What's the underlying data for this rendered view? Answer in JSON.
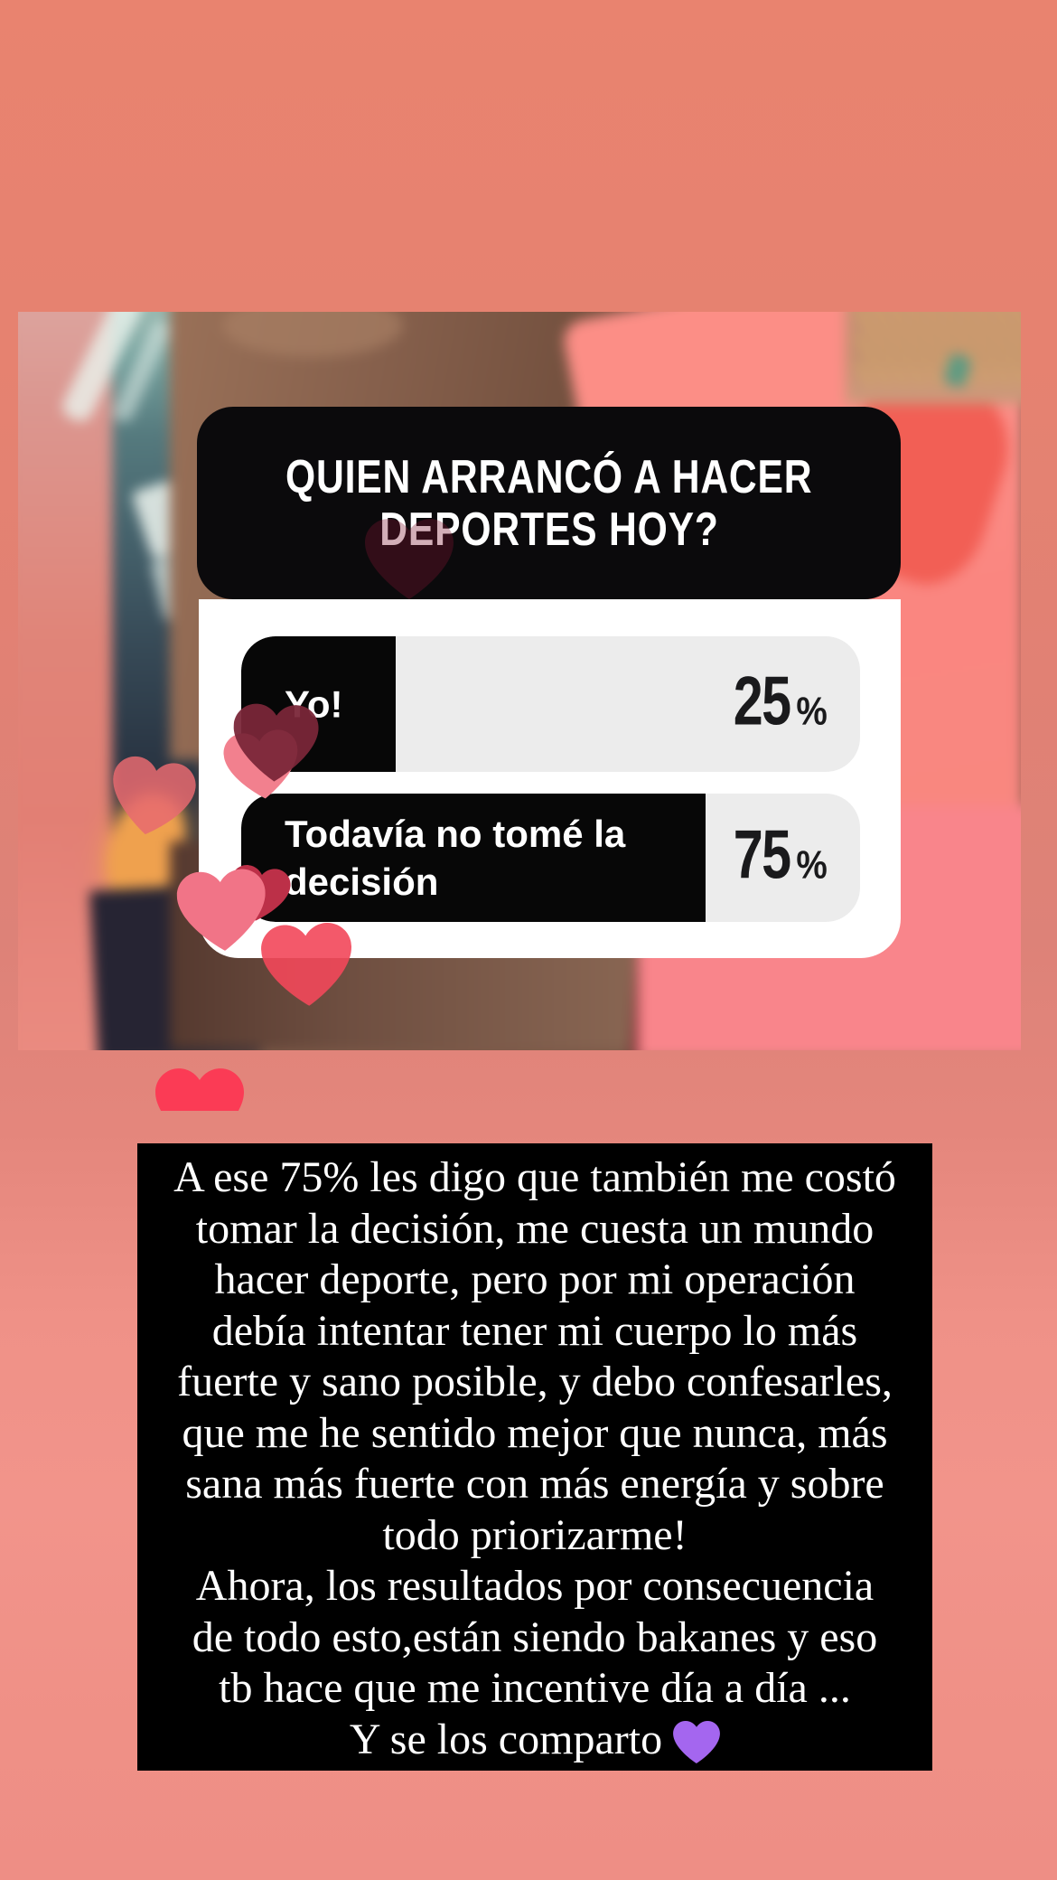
{
  "app": {
    "screen_title": "instagram-story-poll-result"
  },
  "background": {
    "top_color": "#E8826F",
    "bottom_color": "#EE8E85"
  },
  "poll": {
    "question_line1": "QUIEN ARRANCÓ A HACER",
    "question_line2": "DEPORTES HOY?",
    "card_color": "#0B0A0C",
    "results_card_color": "#FFFFFF",
    "bar_track_color": "#ECECEC",
    "bar_fill_color": "#070707",
    "options": [
      {
        "label_line1": "Yo!",
        "label_line2": "",
        "percent": "25",
        "percent_sign": "%",
        "fill_percent": 25
      },
      {
        "label_line1": "Todavía no tomé la",
        "label_line2": "decisión",
        "percent": "75",
        "percent_sign": "%",
        "fill_percent": 75
      }
    ]
  },
  "caption": {
    "background": "#000000",
    "text_color": "#FFFFFF",
    "lines": [
      "A ese 75% les digo que también me costó",
      "tomar la decisión, me cuesta un mundo",
      "hacer deporte, pero por mi operación",
      "debía intentar tener mi cuerpo lo más",
      "fuerte y sano posible, y debo confesarles,",
      "que me he sentido mejor que nunca, más",
      "sana más fuerte con más energía y sobre",
      "todo priorizarme!",
      "Ahora, los resultados por consecuencia",
      "de todo esto,están siendo bakanes y eso",
      "tb hace que me incentive día a día ...",
      "Y se los comparto"
    ]
  },
  "stickers": {
    "hearts": [
      {
        "name": "question-card-heart",
        "color": "#7D1530"
      },
      {
        "name": "pink-heart-under-yo",
        "color": "#F2808E"
      },
      {
        "name": "dark-wine-heart",
        "color": "#7A2638"
      },
      {
        "name": "photo-left-heart",
        "color": "#E86A70"
      },
      {
        "name": "crimson-heart",
        "color": "#BC3048"
      },
      {
        "name": "pink-heart-mid",
        "color": "#F17487"
      },
      {
        "name": "salmon-heart",
        "color": "#F2485A"
      },
      {
        "name": "bottom-edge-heart",
        "color": "#FB3B55"
      },
      {
        "name": "purple-heart",
        "color": "#A466EF"
      }
    ]
  }
}
